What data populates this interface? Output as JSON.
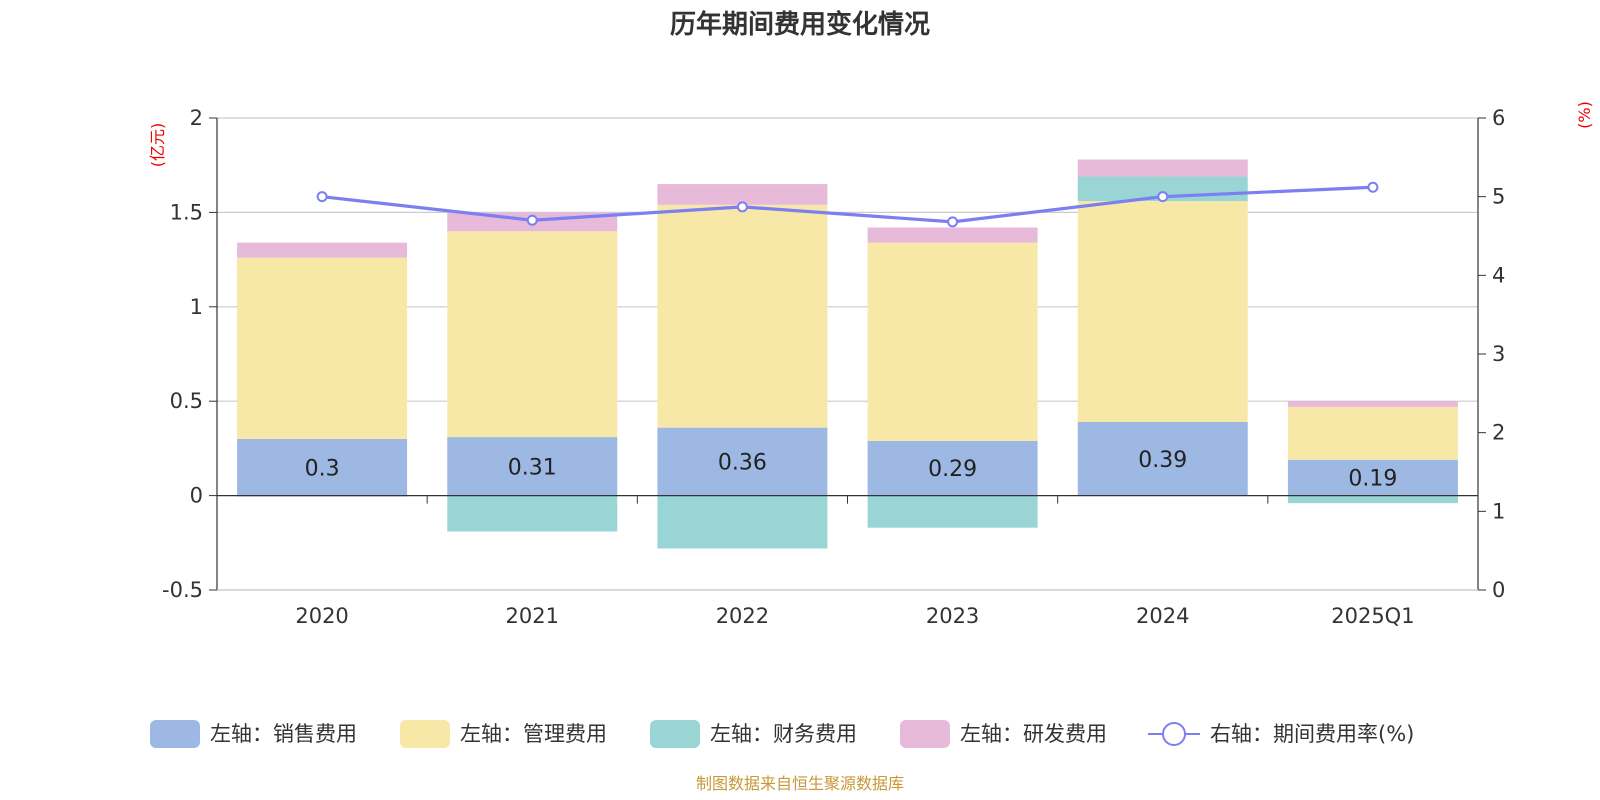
{
  "chart_data": {
    "type": "bar",
    "title": "历年期间费用变化情况",
    "categories": [
      "2020",
      "2021",
      "2022",
      "2023",
      "2024",
      "2025Q1"
    ],
    "left_axis": {
      "unit": "(亿元)",
      "ylim": [
        -0.5,
        2
      ],
      "ticks": [
        "-0.5",
        "0",
        "0.5",
        "1",
        "1.5",
        "2"
      ]
    },
    "right_axis": {
      "unit": "(%)",
      "ylim": [
        0,
        6
      ],
      "ticks": [
        "0",
        "1",
        "2",
        "3",
        "4",
        "5",
        "6"
      ]
    },
    "series": [
      {
        "name": "左轴：销售费用",
        "axis": "left",
        "kind": "bar",
        "color": "#9db8e3",
        "values": [
          0.3,
          0.31,
          0.36,
          0.29,
          0.39,
          0.19
        ],
        "labels": [
          "0.3",
          "0.31",
          "0.36",
          "0.29",
          "0.39",
          "0.19"
        ]
      },
      {
        "name": "左轴：管理费用",
        "axis": "left",
        "kind": "bar",
        "color": "#f8e8a8",
        "values": [
          0.96,
          1.09,
          1.18,
          1.05,
          1.17,
          0.28
        ]
      },
      {
        "name": "左轴：财务费用",
        "axis": "left",
        "kind": "bar",
        "color": "#9ad5d5",
        "values": [
          -0.005,
          -0.19,
          -0.28,
          -0.17,
          0.13,
          -0.04
        ]
      },
      {
        "name": "左轴：研发费用",
        "axis": "left",
        "kind": "bar",
        "color": "#e8bada",
        "values": [
          0.08,
          0.1,
          0.11,
          0.08,
          0.09,
          0.03
        ]
      },
      {
        "name": "右轴：期间费用率(%)",
        "axis": "right",
        "kind": "line",
        "color": "#7b7ff0",
        "values": [
          5.0,
          4.7,
          4.87,
          4.68,
          5.0,
          5.12
        ]
      }
    ],
    "grid": true,
    "legend": "bottom",
    "source": "制图数据来自恒生聚源数据库"
  }
}
